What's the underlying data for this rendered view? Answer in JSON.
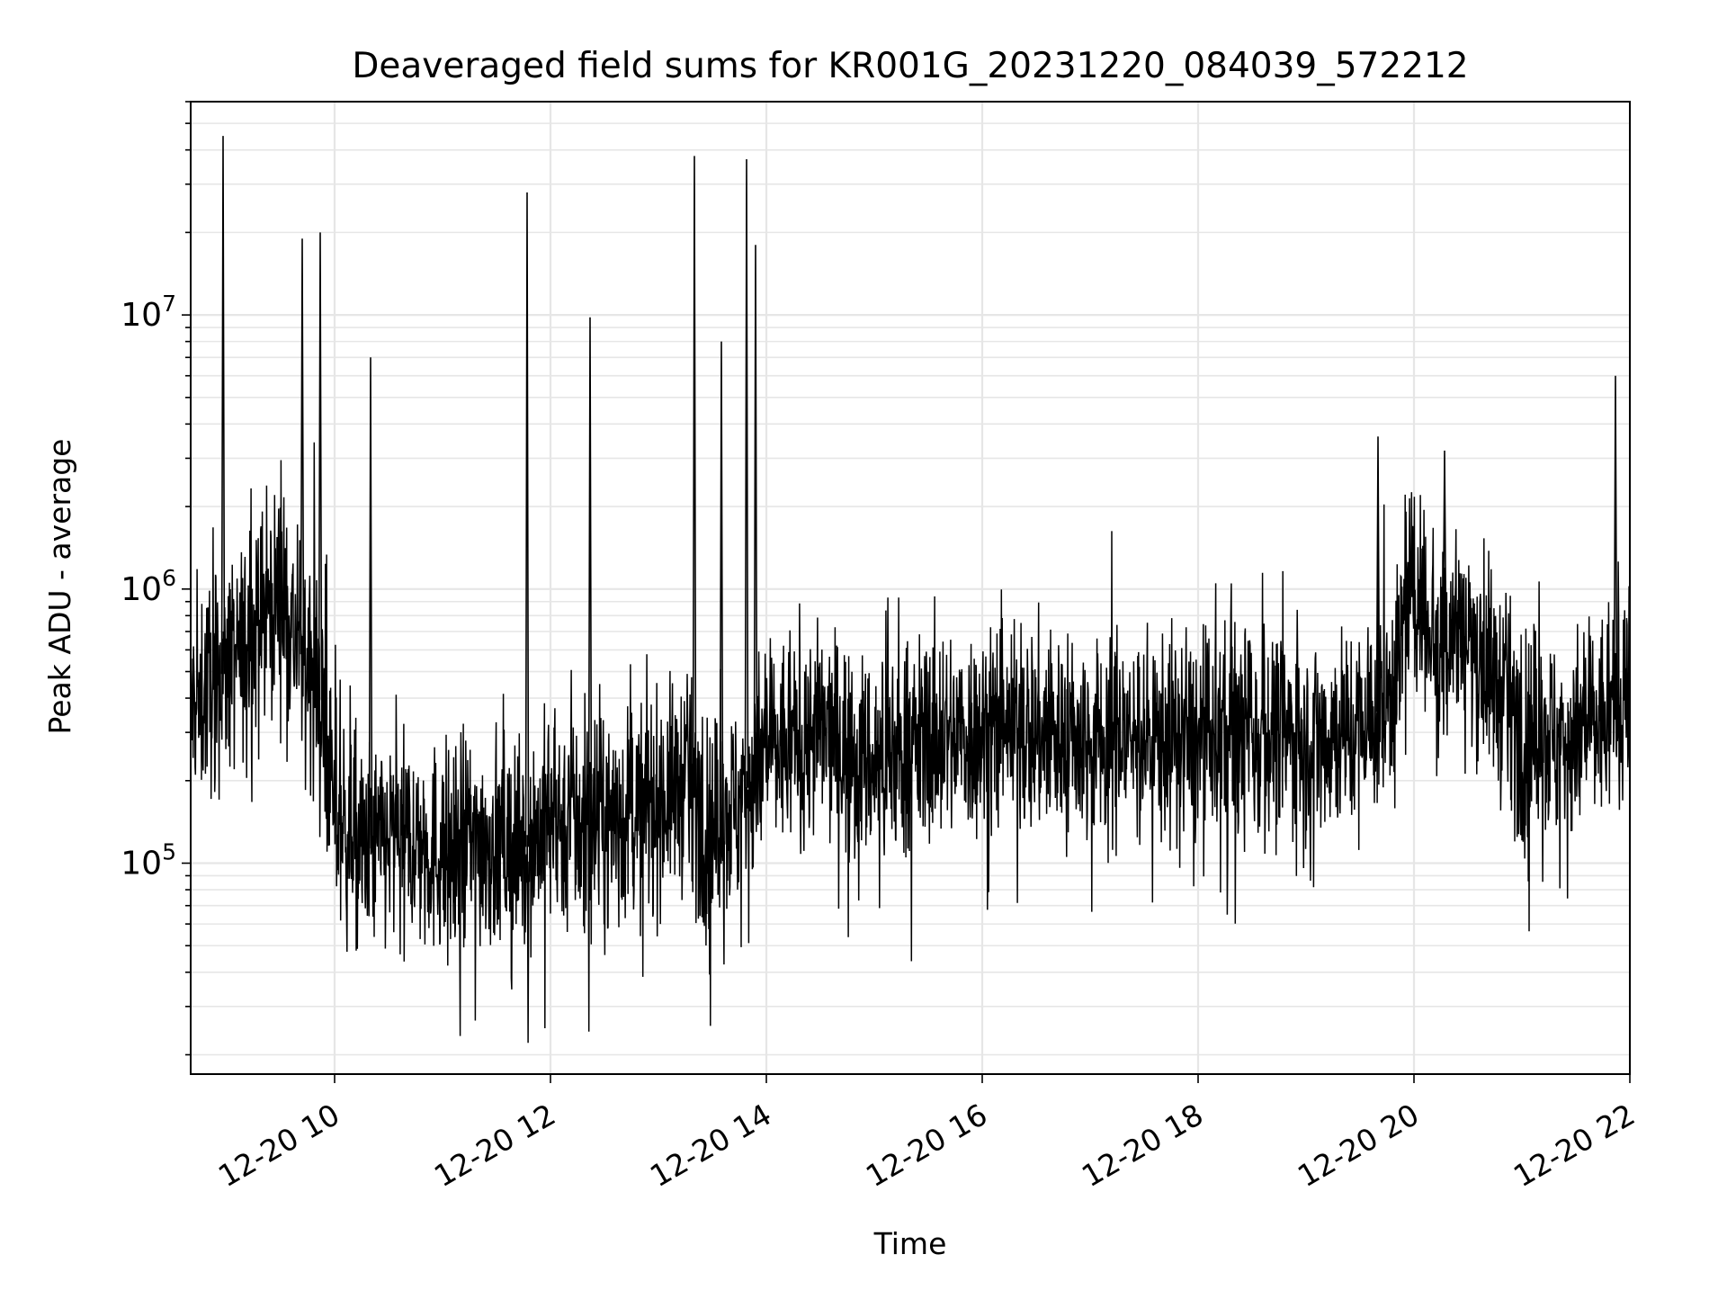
{
  "chart_data": {
    "type": "line",
    "title": "Deaveraged field sums for KR001G_20231220_084039_572212",
    "xlabel": "Time",
    "ylabel": "Peak ADU - average",
    "yscale": "log",
    "ylim": [
      17000,
      60000000
    ],
    "xlim": [
      "2023-12-20T08:40",
      "2023-12-20T22:00"
    ],
    "xtick_labels": [
      "12-20 10",
      "12-20 12",
      "12-20 14",
      "12-20 16",
      "12-20 18",
      "12-20 20",
      "12-20 22"
    ],
    "ytick_labels": [
      {
        "value": 100000,
        "base": "10",
        "exp": "5"
      },
      {
        "value": 1000000,
        "base": "10",
        "exp": "6"
      },
      {
        "value": 10000000,
        "base": "10",
        "exp": "7"
      }
    ],
    "grid": true,
    "legend": "none",
    "line_color": "#000000",
    "series": [
      {
        "x": [
          "2023-12-20T08:40",
          "2023-12-20T08:50",
          "2023-12-20T09:00",
          "2023-12-20T09:10",
          "2023-12-20T09:20",
          "2023-12-20T09:30",
          "2023-12-20T09:40",
          "2023-12-20T09:50",
          "2023-12-20T10:00",
          "2023-12-20T10:15",
          "2023-12-20T10:30",
          "2023-12-20T10:45",
          "2023-12-20T11:00",
          "2023-12-20T11:15",
          "2023-12-20T11:30",
          "2023-12-20T11:45",
          "2023-12-20T12:00",
          "2023-12-20T12:15",
          "2023-12-20T12:30",
          "2023-12-20T12:45",
          "2023-12-20T13:00",
          "2023-12-20T13:15",
          "2023-12-20T13:30",
          "2023-12-20T13:45",
          "2023-12-20T14:00",
          "2023-12-20T14:30",
          "2023-12-20T15:00",
          "2023-12-20T15:30",
          "2023-12-20T16:00",
          "2023-12-20T16:30",
          "2023-12-20T17:00",
          "2023-12-20T17:30",
          "2023-12-20T18:00",
          "2023-12-20T18:30",
          "2023-12-20T19:00",
          "2023-12-20T19:30",
          "2023-12-20T19:45",
          "2023-12-20T20:00",
          "2023-12-20T20:15",
          "2023-12-20T20:25",
          "2023-12-20T20:35",
          "2023-12-20T21:00",
          "2023-12-20T21:30",
          "2023-12-20T21:50",
          "2023-12-20T22:00"
        ],
        "y": [
          350000,
          450000,
          500000,
          600000,
          800000,
          1000000,
          600000,
          500000,
          150000,
          110000,
          120000,
          120000,
          110000,
          120000,
          120000,
          110000,
          150000,
          130000,
          140000,
          150000,
          170000,
          200000,
          130000,
          170000,
          250000,
          300000,
          230000,
          280000,
          300000,
          300000,
          280000,
          290000,
          280000,
          290000,
          290000,
          310000,
          380000,
          1000000,
          700000,
          750000,
          600000,
          300000,
          280000,
          350000,
          500000
        ],
        "spikes": [
          {
            "x": "2023-12-20T08:58",
            "y": 45000000
          },
          {
            "x": "2023-12-20T09:42",
            "y": 19000000
          },
          {
            "x": "2023-12-20T09:52",
            "y": 20000000
          },
          {
            "x": "2023-12-20T10:20",
            "y": 7000000
          },
          {
            "x": "2023-12-20T11:47",
            "y": 28000000
          },
          {
            "x": "2023-12-20T12:22",
            "y": 9800000
          },
          {
            "x": "2023-12-20T13:20",
            "y": 38000000
          },
          {
            "x": "2023-12-20T13:35",
            "y": 8000000
          },
          {
            "x": "2023-12-20T13:49",
            "y": 37000000
          },
          {
            "x": "2023-12-20T13:54",
            "y": 18000000
          },
          {
            "x": "2023-12-20T19:40",
            "y": 3600000
          },
          {
            "x": "2023-12-20T20:17",
            "y": 3200000
          },
          {
            "x": "2023-12-20T21:52",
            "y": 6000000
          }
        ]
      }
    ]
  }
}
